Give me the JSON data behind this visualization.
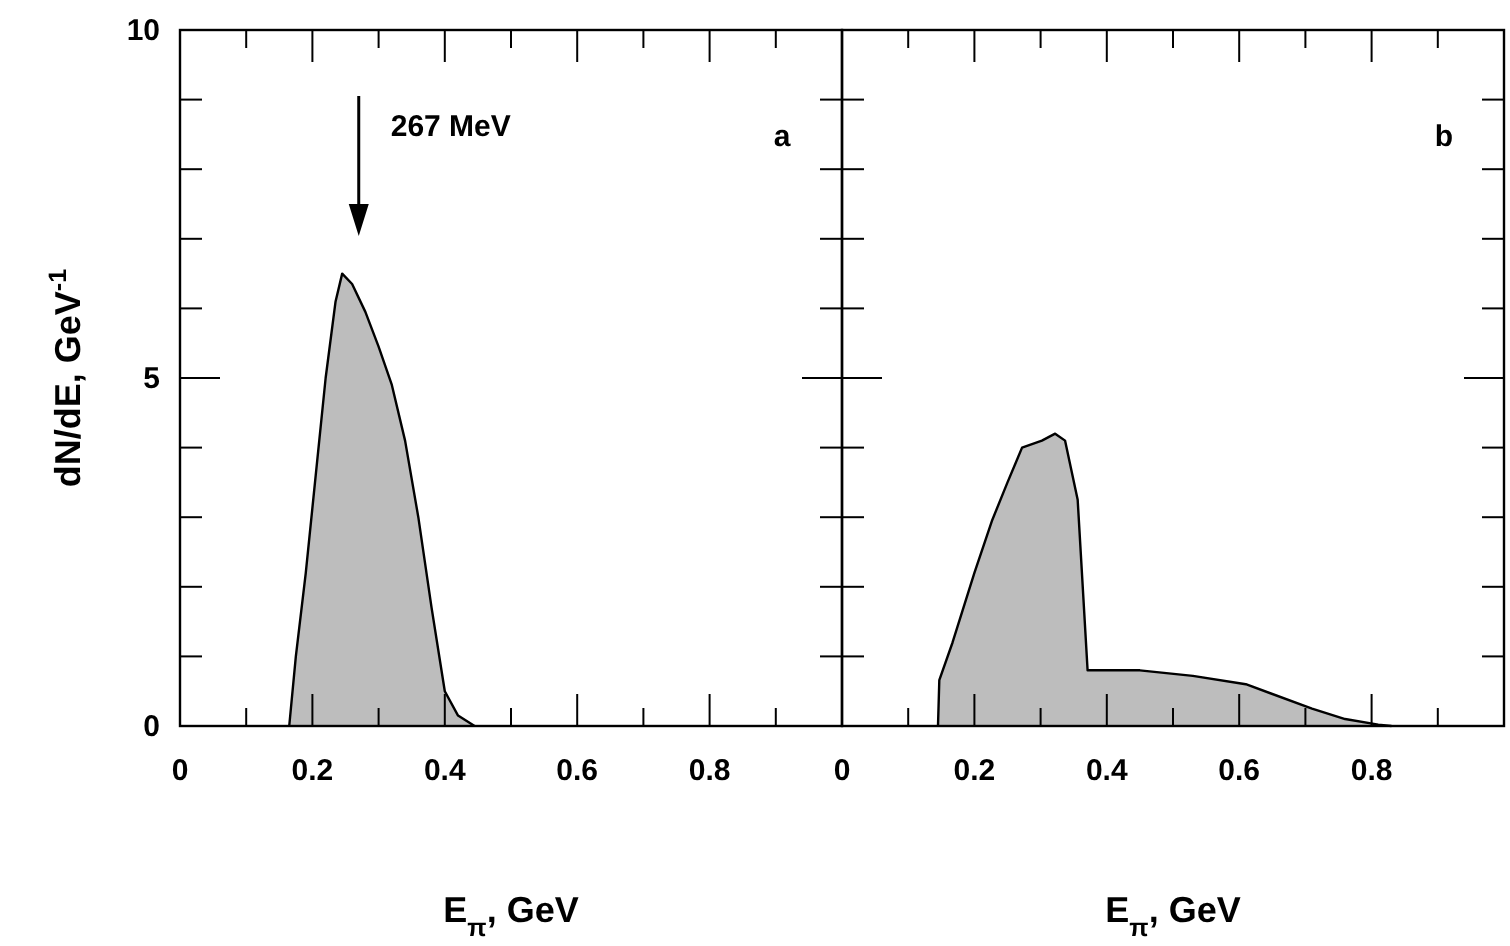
{
  "chart_data": [
    {
      "type": "area",
      "title": "a",
      "xlabel": "E$_{π}$, GeV",
      "ylabel": "dN/dE, GeV$^{-1}$",
      "xlim": [
        0,
        1
      ],
      "ylim": [
        0,
        10
      ],
      "xticks": [
        0,
        {
          "value": 0.1,
          "label": null
        },
        0.2,
        {
          "value": 0.3,
          "label": null
        },
        0.4,
        {
          "value": 0.5,
          "label": null
        },
        0.6,
        {
          "value": 0.7,
          "label": null
        },
        0.8,
        {
          "value": 0.9,
          "label": null
        }
      ],
      "yticks": [
        0,
        {
          "value": 1,
          "label": null
        },
        {
          "value": 2,
          "label": null
        },
        {
          "value": 3,
          "label": null
        },
        {
          "value": 4,
          "label": null
        },
        5,
        {
          "value": 6,
          "label": null
        },
        {
          "value": 7,
          "label": null
        },
        {
          "value": 8,
          "label": null
        },
        {
          "value": 9,
          "label": null
        },
        10
      ],
      "series": [
        {
          "color": "#bdbdbd",
          "x": [
            0.165,
            0.175,
            0.19,
            0.205,
            0.22,
            0.235,
            0.245,
            0.26,
            0.28,
            0.3,
            0.32,
            0.34,
            0.36,
            0.38,
            0.4,
            0.42,
            0.445
          ],
          "values": [
            0,
            1.0,
            2.2,
            3.6,
            5.0,
            6.1,
            6.5,
            6.35,
            5.95,
            5.45,
            4.9,
            4.1,
            3.0,
            1.7,
            0.5,
            0.15,
            0
          ]
        }
      ],
      "annotations": [
        "267 MeV"
      ]
    },
    {
      "type": "area",
      "title": "b",
      "xlabel": "E$_{π}$, GeV",
      "xlim": [
        0,
        1
      ],
      "ylim": [
        0,
        10
      ],
      "tick_labels": "x",
      "xticks": [
        0,
        {
          "value": 0.1,
          "label": null
        },
        0.2,
        {
          "value": 0.3,
          "label": null
        },
        0.4,
        {
          "value": 0.5,
          "label": null
        },
        0.6,
        {
          "value": 0.7,
          "label": null
        },
        0.8,
        {
          "value": 0.9,
          "label": null
        }
      ],
      "yticks": [
        {
          "value": 0,
          "label": null
        },
        {
          "value": 1,
          "label": null
        },
        {
          "value": 2,
          "label": null
        },
        {
          "value": 3,
          "label": null
        },
        {
          "value": 4,
          "label": null
        },
        {
          "value": 5,
          "label": null
        },
        {
          "value": 6,
          "label": null
        },
        {
          "value": 7,
          "label": null
        },
        {
          "value": 8,
          "label": null
        },
        {
          "value": 9,
          "label": null
        },
        {
          "value": 10,
          "label": null
        }
      ],
      "series": [
        {
          "color": "#bdbdbd",
          "x": [
            0.145,
            0.147,
            0.167,
            0.2,
            0.227,
            0.25,
            0.272,
            0.302,
            0.322,
            0.337,
            0.356,
            0.371,
            0.375,
            0.45,
            0.53,
            0.61,
            0.71,
            0.76,
            0.81,
            0.83
          ],
          "values": [
            0,
            0.66,
            1.2,
            2.2,
            2.96,
            3.5,
            4.0,
            4.1,
            4.2,
            4.1,
            3.25,
            0.8,
            0.8,
            0.8,
            0.72,
            0.6,
            0.25,
            0.1,
            0.02,
            0
          ]
        }
      ]
    }
  ]
}
